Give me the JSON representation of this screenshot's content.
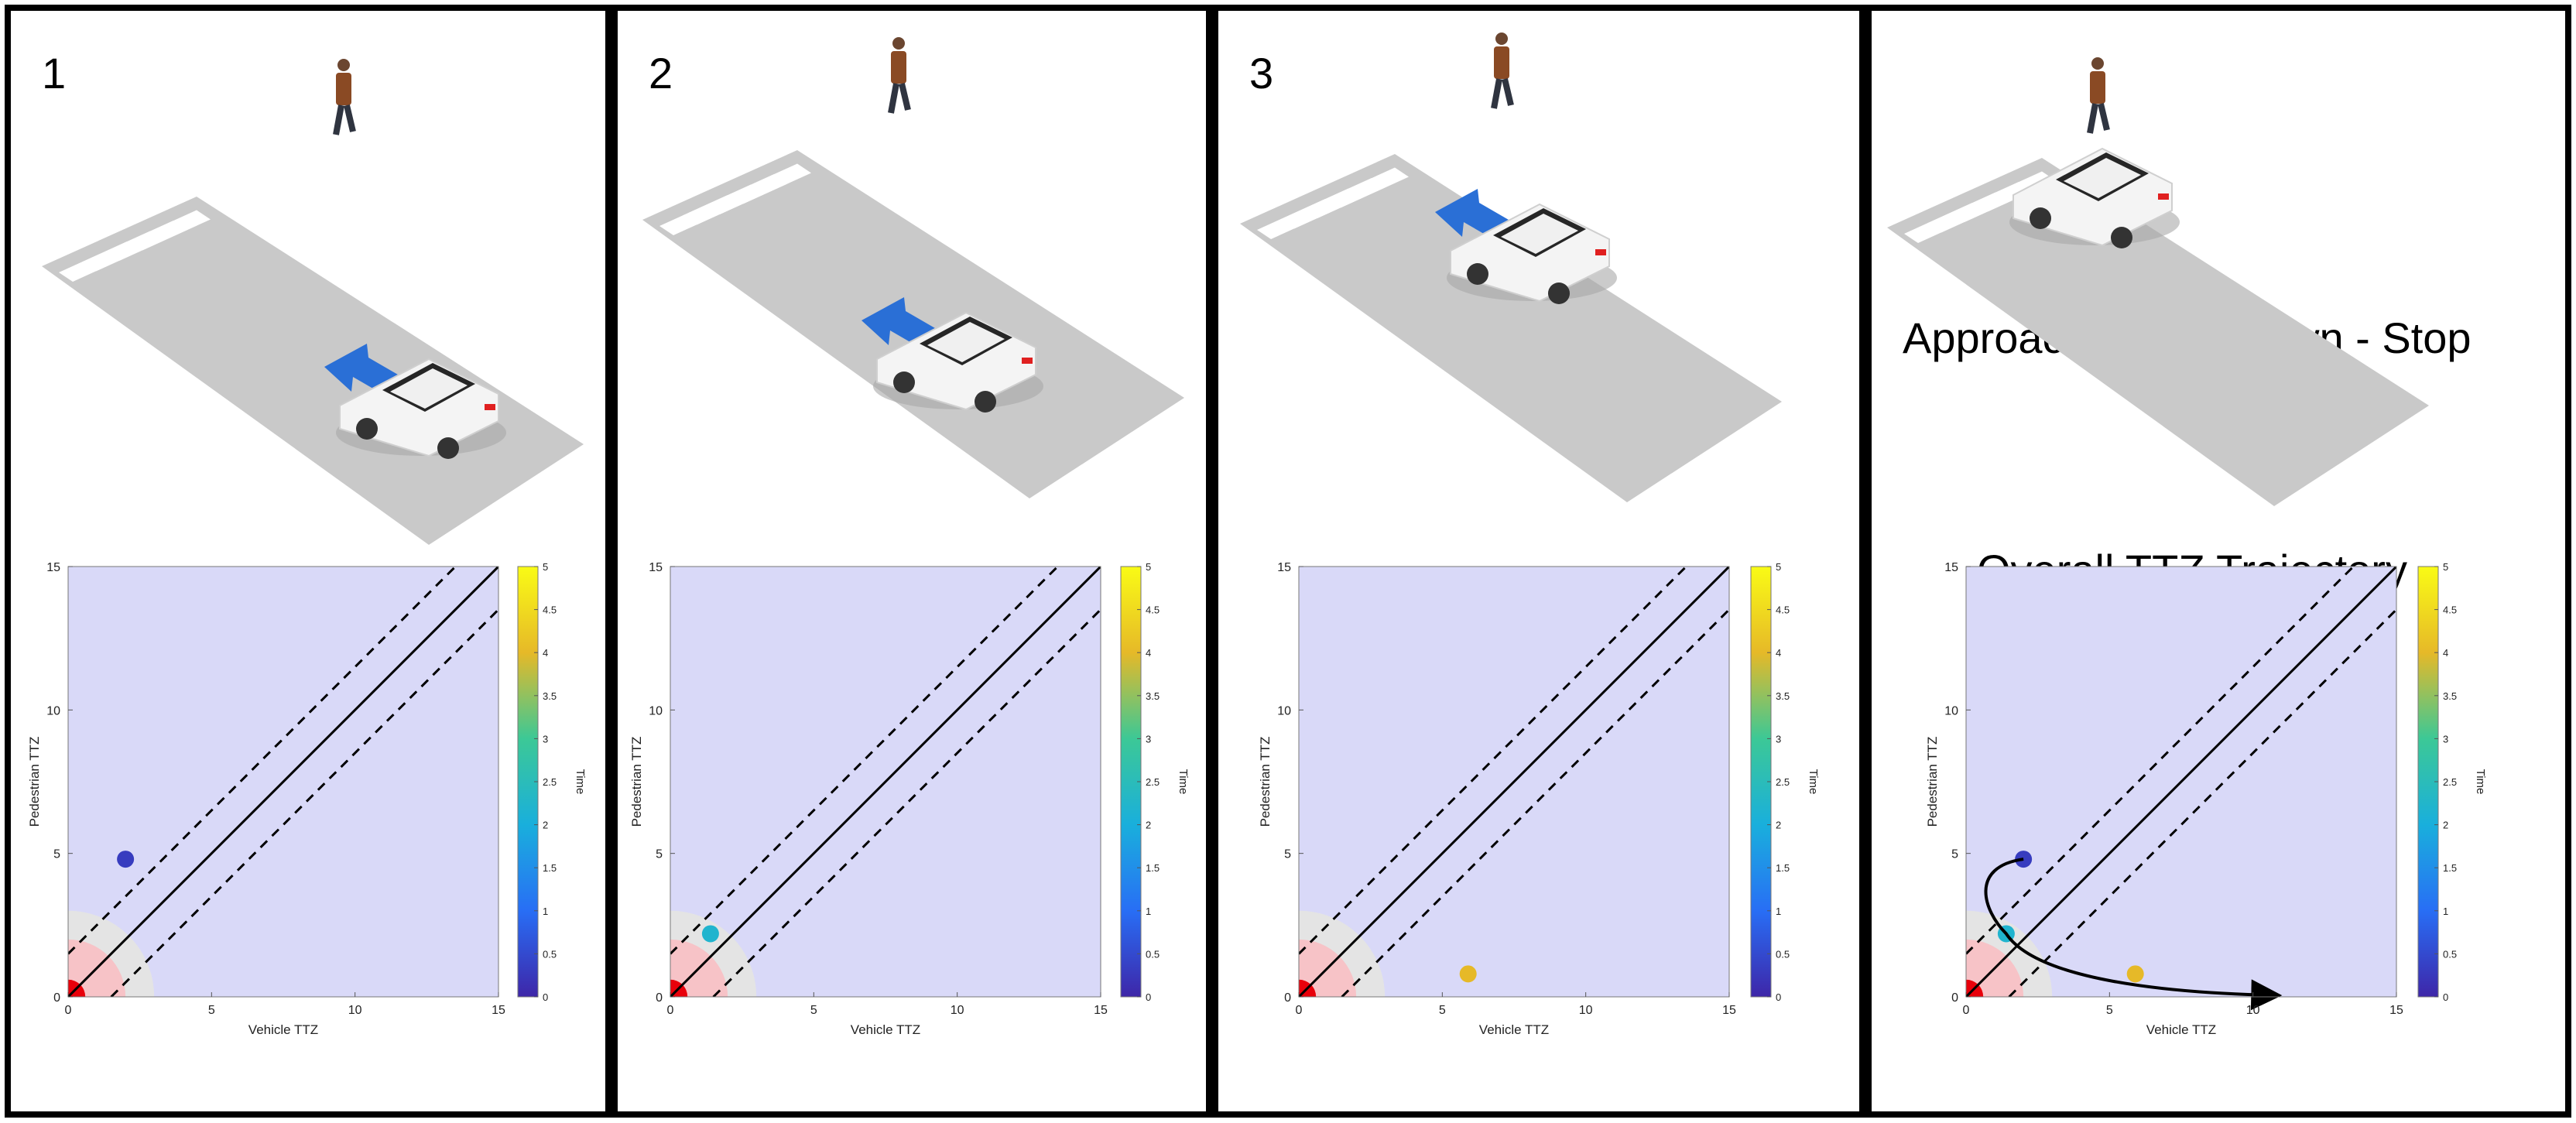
{
  "panels": [
    {
      "number": "1",
      "stage": 1,
      "point": {
        "x": 2.0,
        "y": 4.8,
        "t": 0.3
      }
    },
    {
      "number": "2",
      "stage": 2,
      "point": {
        "x": 1.4,
        "y": 2.2,
        "t": 2.2
      }
    },
    {
      "number": "3",
      "stage": 3,
      "point": {
        "x": 5.9,
        "y": 0.8,
        "t": 4.0
      }
    },
    {
      "number": "",
      "stage": 4,
      "point": null
    }
  ],
  "final_panel": {
    "scene_caption": "Approach - Slow Down - Stop",
    "plot_title": "Overall TTZ Trajectory"
  },
  "chart_data": {
    "type": "scatter",
    "xlabel": "Vehicle TTZ",
    "ylabel": "Pedestrian TTZ",
    "colorbar_label": "Time",
    "xlim": [
      0,
      15
    ],
    "ylim": [
      0,
      15
    ],
    "x_ticks": [
      "0",
      "5",
      "10",
      "15"
    ],
    "y_ticks": [
      "0",
      "5",
      "10",
      "15"
    ],
    "colorbar_ticks": [
      "0",
      "0.5",
      "1",
      "1.5",
      "2",
      "2.5",
      "3",
      "3.5",
      "4",
      "4.5",
      "5"
    ],
    "colorbar_range": [
      0,
      5
    ],
    "diagonal_offset": 1.5,
    "trajectory": [
      {
        "x": 2.0,
        "y": 4.8,
        "t": 0.3
      },
      {
        "x": 1.4,
        "y": 2.2,
        "t": 2.2
      },
      {
        "x": 5.9,
        "y": 0.8,
        "t": 4.0
      }
    ],
    "trajectory_arrow_end": {
      "x": 10.8,
      "y": 0.0
    }
  },
  "colors": {
    "plot_background": "#d9d9f8",
    "danger_core": "#e8000b",
    "danger_halo": "#f7c3c7",
    "safe_zone": "#e4e4e4",
    "motion_arrow": "#2a6fd6",
    "road": "#c9c9c9",
    "crosswalk": "#ffffff"
  }
}
